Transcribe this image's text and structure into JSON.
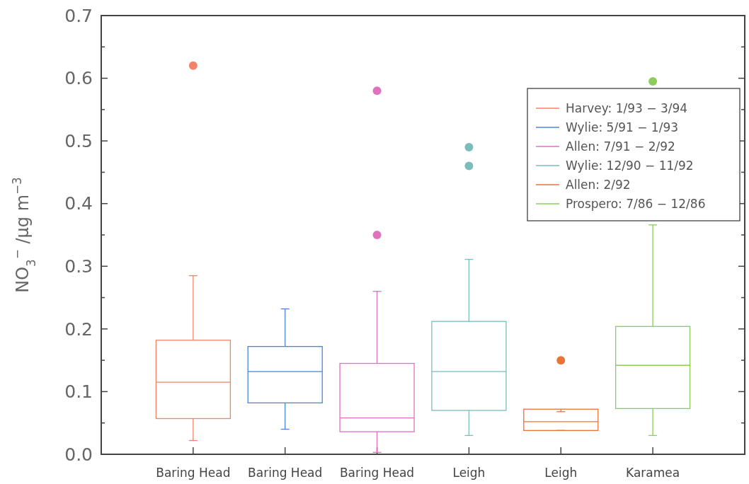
{
  "chart_data": {
    "type": "box",
    "ylabel": "NO$_{3}$$^{−}$ /μg m$^{−3}$",
    "categories": [
      "Baring Head",
      "Baring Head",
      "Baring Head",
      "Leigh",
      "Leigh",
      "Karamea"
    ],
    "ylim": [
      0,
      0.7
    ],
    "yticks": [
      {
        "value": 0,
        "label": "0.0"
      },
      {
        "value": 0.05,
        "label": null
      },
      {
        "value": 0.1,
        "label": "0.1"
      },
      {
        "value": 0.15,
        "label": null
      },
      {
        "value": 0.2,
        "label": "0.2"
      },
      {
        "value": 0.25,
        "label": null
      },
      {
        "value": 0.3,
        "label": "0.3"
      },
      {
        "value": 0.35,
        "label": null
      },
      {
        "value": 0.4,
        "label": "0.4"
      },
      {
        "value": 0.45,
        "label": null
      },
      {
        "value": 0.5,
        "label": "0.5"
      },
      {
        "value": 0.55,
        "label": null
      },
      {
        "value": 0.6,
        "label": "0.6"
      },
      {
        "value": 0.65,
        "label": null
      },
      {
        "value": 0.7,
        "label": "0.7"
      }
    ],
    "legend": "top right",
    "grid": false,
    "series": [
      {
        "name": "Harvey: 1/93 − 3/94",
        "color": "#f4826a",
        "boxes": [
          {
            "low": 0.022,
            "q1": 0.057,
            "median": 0.115,
            "q3": 0.182,
            "high": 0.285,
            "outliers": [
              0.62
            ]
          },
          null,
          null,
          null,
          null,
          null
        ]
      },
      {
        "name": "Wylie: 5/91 − 1/93",
        "color": "#4a86d8",
        "boxes": [
          null,
          {
            "low": 0.04,
            "q1": 0.082,
            "median": 0.132,
            "q3": 0.172,
            "high": 0.232
          },
          null,
          null,
          null,
          null
        ]
      },
      {
        "name": "Allen: 7/91 − 2/92",
        "color": "#e070c0",
        "boxes": [
          null,
          null,
          {
            "low": 0.003,
            "q1": 0.036,
            "median": 0.058,
            "q3": 0.145,
            "high": 0.26,
            "outliers": [
              0.58,
              0.35
            ]
          },
          null,
          null,
          null
        ]
      },
      {
        "name": "Wylie: 12/90 − 11/92",
        "color": "#7bbcbc",
        "boxes": [
          null,
          null,
          null,
          {
            "low": 0.03,
            "q1": 0.07,
            "median": 0.132,
            "q3": 0.212,
            "high": 0.311,
            "outliers": [
              0.49,
              0.46
            ]
          },
          null,
          null
        ]
      },
      {
        "name": "Allen: 2/92",
        "color": "#e8743a",
        "boxes": [
          null,
          null,
          null,
          null,
          {
            "low": 0.038,
            "q1": 0.038,
            "median": 0.052,
            "q3": 0.072,
            "high": 0.068,
            "outliers": [
              0.15
            ]
          },
          null
        ]
      },
      {
        "name": "Prospero: 7/86 − 12/86",
        "color": "#8ccc5a",
        "boxes": [
          null,
          null,
          null,
          null,
          null,
          {
            "low": 0.03,
            "q1": 0.073,
            "median": 0.142,
            "q3": 0.204,
            "high": 0.366,
            "outliers": [
              0.595
            ]
          }
        ]
      }
    ]
  }
}
